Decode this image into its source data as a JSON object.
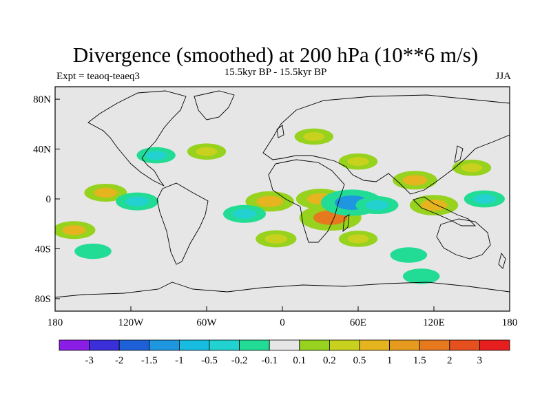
{
  "title": "Divergence (smoothed) at 200 hPa (10**6 m/s)",
  "subtitle_left": "Expt = teaoq-teaeq3",
  "subtitle_center": "15.5kyr BP - 15.5kyr BP",
  "subtitle_right": "JJA",
  "axes": {
    "lat_ticks": [
      "80N",
      "40N",
      "0",
      "40S",
      "80S"
    ],
    "lon_ticks": [
      "180",
      "120W",
      "60W",
      "0",
      "60E",
      "120E",
      "180"
    ]
  },
  "colorbar": {
    "colors": [
      "#8a1ee6",
      "#3a2fd8",
      "#1e60d8",
      "#1e96e0",
      "#18bce0",
      "#22d2d0",
      "#22dc96",
      "#e6e6e6",
      "#96d21e",
      "#c8d21e",
      "#e6b41e",
      "#e69b1e",
      "#e6781e",
      "#e6501e",
      "#e61e1e"
    ],
    "labels": [
      "-3",
      "-2",
      "-1.5",
      "-1",
      "-0.5",
      "-0.2",
      "-0.1",
      "0.1",
      "0.2",
      "0.5",
      "1",
      "1.5",
      "2",
      "3"
    ]
  },
  "chart_data": {
    "type": "heatmap",
    "title": "Divergence (smoothed) at 200 hPa (10**6 m/s)",
    "variable": "Divergence (smoothed)",
    "level": "200 hPa",
    "units": "10**6 m/s",
    "season": "JJA",
    "x_range_deg": [
      -180,
      180
    ],
    "y_range_deg": [
      -90,
      90
    ],
    "contour_levels": [
      -3,
      -2,
      -1.5,
      -1,
      -0.5,
      -0.2,
      -0.1,
      0.1,
      0.2,
      0.5,
      1,
      1.5,
      2,
      3
    ],
    "features": [
      {
        "lon": 30,
        "lat": 0,
        "value": 0.8
      },
      {
        "lon": 38,
        "lat": -15,
        "value": 1.5
      },
      {
        "lon": 55,
        "lat": -3,
        "value": -1.5
      },
      {
        "lon": 75,
        "lat": -5,
        "value": -0.5
      },
      {
        "lon": 105,
        "lat": 15,
        "value": 0.6
      },
      {
        "lon": 120,
        "lat": -5,
        "value": 0.8
      },
      {
        "lon": -10,
        "lat": -2,
        "value": 0.8
      },
      {
        "lon": -30,
        "lat": -12,
        "value": -0.5
      },
      {
        "lon": -5,
        "lat": -32,
        "value": 0.4
      },
      {
        "lon": -140,
        "lat": 5,
        "value": 0.5
      },
      {
        "lon": -165,
        "lat": -25,
        "value": 0.5
      },
      {
        "lon": -115,
        "lat": -2,
        "value": -0.5
      },
      {
        "lon": 160,
        "lat": 0,
        "value": -0.4
      },
      {
        "lon": 150,
        "lat": 25,
        "value": 0.3
      },
      {
        "lon": 60,
        "lat": 30,
        "value": 0.3
      },
      {
        "lon": -100,
        "lat": 35,
        "value": -0.3
      },
      {
        "lon": -60,
        "lat": 38,
        "value": 0.3
      },
      {
        "lon": 25,
        "lat": 50,
        "value": 0.3
      },
      {
        "lon": 60,
        "lat": -32,
        "value": 0.3
      },
      {
        "lon": 100,
        "lat": -45,
        "value": -0.2
      },
      {
        "lon": -150,
        "lat": -42,
        "value": -0.2
      },
      {
        "lon": 110,
        "lat": -62,
        "value": -0.2
      }
    ]
  }
}
